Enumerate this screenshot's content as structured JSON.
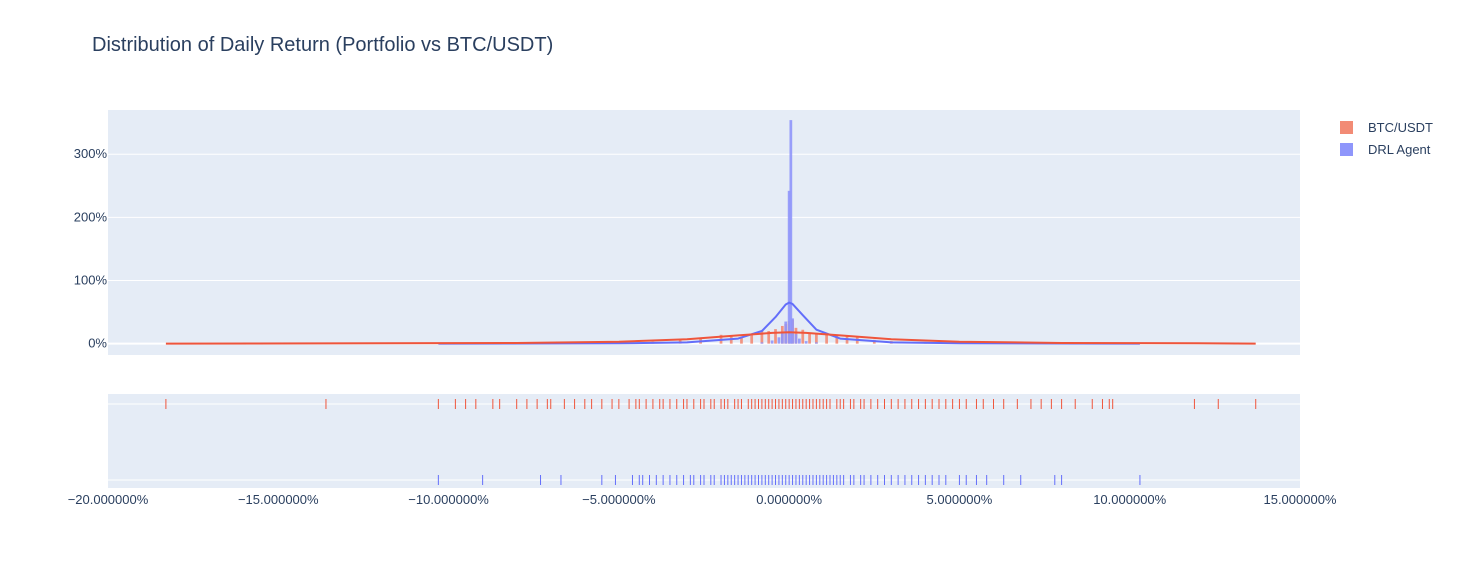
{
  "chart_data": {
    "type": "histogram",
    "title": "Distribution of Daily Return (Portfolio vs BTC/USDT)",
    "xlabel": "",
    "ylabel": "",
    "x_tick_labels": [
      "−20.000000%",
      "−15.000000%",
      "−10.000000%",
      "−5.000000%",
      "0.000000%",
      "5.000000%",
      "10.000000%",
      "15.000000%"
    ],
    "x_ticks": [
      -0.2,
      -0.15,
      -0.1,
      -0.05,
      0,
      0.05,
      0.1,
      0.15
    ],
    "xlim": [
      -0.2,
      0.15
    ],
    "y_tick_labels": [
      "0%",
      "100%",
      "200%",
      "300%"
    ],
    "y_ticks": [
      0,
      1,
      2,
      3
    ],
    "ylim": [
      -0.18,
      3.7
    ],
    "legend_position": "top-right outside",
    "histnorm": "probability density",
    "series": [
      {
        "name": "BTC/USDT",
        "color": "#EF553B",
        "bar_color": "#f28b75",
        "hist_bins": [
          [
            -0.04,
            0.03
          ],
          [
            -0.032,
            0.05
          ],
          [
            -0.026,
            0.08
          ],
          [
            -0.02,
            0.14
          ],
          [
            -0.017,
            0.13
          ],
          [
            -0.014,
            0.1
          ],
          [
            -0.011,
            0.14
          ],
          [
            -0.008,
            0.2
          ],
          [
            -0.006,
            0.2
          ],
          [
            -0.004,
            0.23
          ],
          [
            -0.002,
            0.28
          ],
          [
            -0.001,
            0.31
          ],
          [
            0.0,
            0.36
          ],
          [
            0.001,
            0.38
          ],
          [
            0.002,
            0.25
          ],
          [
            0.004,
            0.22
          ],
          [
            0.006,
            0.17
          ],
          [
            0.008,
            0.16
          ],
          [
            0.011,
            0.15
          ],
          [
            0.014,
            0.12
          ],
          [
            0.017,
            0.13
          ],
          [
            0.02,
            0.1
          ],
          [
            0.025,
            0.06
          ],
          [
            0.03,
            0.04
          ],
          [
            0.04,
            0.02
          ]
        ],
        "kde": [
          [
            -0.183,
            0.0
          ],
          [
            -0.12,
            0.005
          ],
          [
            -0.08,
            0.01
          ],
          [
            -0.05,
            0.03
          ],
          [
            -0.03,
            0.07
          ],
          [
            -0.015,
            0.13
          ],
          [
            -0.005,
            0.17
          ],
          [
            0.0,
            0.18
          ],
          [
            0.005,
            0.17
          ],
          [
            0.015,
            0.13
          ],
          [
            0.03,
            0.07
          ],
          [
            0.05,
            0.03
          ],
          [
            0.08,
            0.01
          ],
          [
            0.12,
            0.005
          ],
          [
            0.137,
            0.0
          ]
        ],
        "rug": [
          -0.183,
          -0.136,
          -0.103,
          -0.098,
          -0.095,
          -0.092,
          -0.087,
          -0.085,
          -0.08,
          -0.077,
          -0.074,
          -0.071,
          -0.07,
          -0.066,
          -0.063,
          -0.06,
          -0.058,
          -0.055,
          -0.052,
          -0.05,
          -0.047,
          -0.045,
          -0.044,
          -0.042,
          -0.04,
          -0.038,
          -0.037,
          -0.035,
          -0.033,
          -0.031,
          -0.03,
          -0.028,
          -0.026,
          -0.025,
          -0.023,
          -0.022,
          -0.02,
          -0.019,
          -0.018,
          -0.016,
          -0.015,
          -0.014,
          -0.012,
          -0.011,
          -0.01,
          -0.009,
          -0.008,
          -0.007,
          -0.006,
          -0.005,
          -0.004,
          -0.003,
          -0.002,
          -0.001,
          0.0,
          0.001,
          0.002,
          0.003,
          0.004,
          0.005,
          0.006,
          0.007,
          0.008,
          0.009,
          0.01,
          0.011,
          0.012,
          0.014,
          0.015,
          0.016,
          0.018,
          0.019,
          0.021,
          0.022,
          0.024,
          0.026,
          0.028,
          0.03,
          0.032,
          0.034,
          0.036,
          0.038,
          0.04,
          0.042,
          0.044,
          0.046,
          0.048,
          0.05,
          0.052,
          0.055,
          0.057,
          0.06,
          0.063,
          0.067,
          0.071,
          0.074,
          0.077,
          0.08,
          0.084,
          0.089,
          0.092,
          0.094,
          0.095,
          0.119,
          0.126,
          0.137
        ]
      },
      {
        "name": "DRL Agent",
        "color": "#636EFA",
        "bar_color": "#8f96fb",
        "hist_bins": [
          [
            -0.008,
            0.02
          ],
          [
            -0.005,
            0.05
          ],
          [
            -0.003,
            0.1
          ],
          [
            -0.002,
            0.17
          ],
          [
            -0.001,
            0.35
          ],
          [
            0.0,
            2.42
          ],
          [
            0.0005,
            3.54
          ],
          [
            0.001,
            0.4
          ],
          [
            0.002,
            0.15
          ],
          [
            0.003,
            0.08
          ],
          [
            0.005,
            0.04
          ],
          [
            0.008,
            0.02
          ]
        ],
        "kde": [
          [
            -0.103,
            0.0
          ],
          [
            -0.05,
            0.005
          ],
          [
            -0.03,
            0.02
          ],
          [
            -0.015,
            0.08
          ],
          [
            -0.008,
            0.2
          ],
          [
            -0.004,
            0.42
          ],
          [
            -0.001,
            0.62
          ],
          [
            0.0,
            0.65
          ],
          [
            0.001,
            0.63
          ],
          [
            0.004,
            0.45
          ],
          [
            0.008,
            0.22
          ],
          [
            0.015,
            0.08
          ],
          [
            0.03,
            0.02
          ],
          [
            0.05,
            0.005
          ],
          [
            0.103,
            0.0
          ]
        ],
        "rug": [
          -0.103,
          -0.09,
          -0.073,
          -0.067,
          -0.055,
          -0.051,
          -0.046,
          -0.044,
          -0.043,
          -0.041,
          -0.039,
          -0.037,
          -0.035,
          -0.033,
          -0.031,
          -0.029,
          -0.028,
          -0.026,
          -0.025,
          -0.023,
          -0.022,
          -0.02,
          -0.019,
          -0.018,
          -0.017,
          -0.016,
          -0.015,
          -0.014,
          -0.013,
          -0.012,
          -0.011,
          -0.01,
          -0.009,
          -0.008,
          -0.007,
          -0.006,
          -0.005,
          -0.004,
          -0.003,
          -0.002,
          -0.001,
          0.0,
          0.001,
          0.002,
          0.003,
          0.004,
          0.005,
          0.006,
          0.007,
          0.008,
          0.009,
          0.01,
          0.011,
          0.012,
          0.013,
          0.014,
          0.015,
          0.016,
          0.018,
          0.019,
          0.021,
          0.022,
          0.024,
          0.026,
          0.028,
          0.03,
          0.032,
          0.034,
          0.036,
          0.038,
          0.04,
          0.042,
          0.044,
          0.046,
          0.05,
          0.052,
          0.055,
          0.058,
          0.063,
          0.068,
          0.078,
          0.08,
          0.103
        ]
      }
    ]
  }
}
